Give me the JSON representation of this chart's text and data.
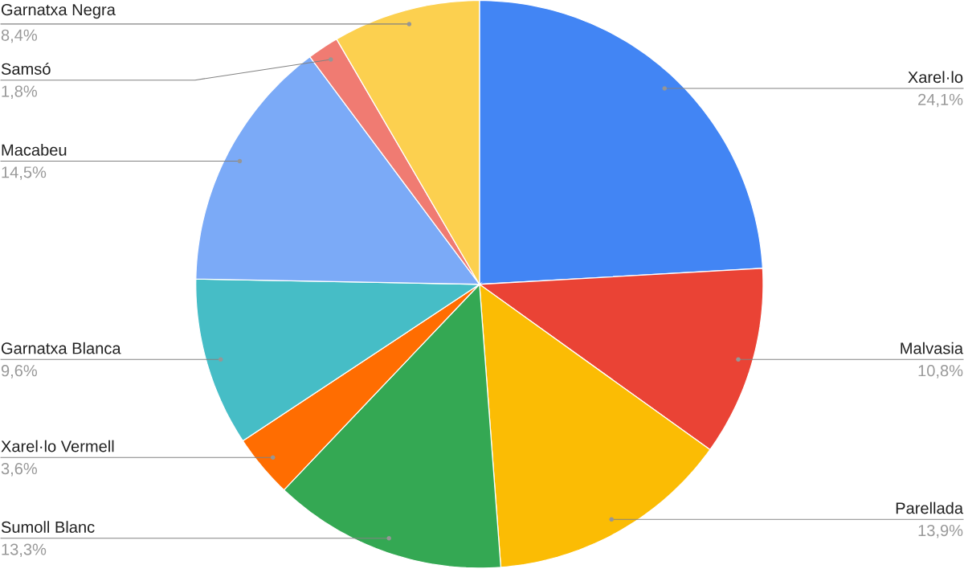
{
  "chart_data": {
    "type": "pie",
    "categories": [
      "Xarel·lo",
      "Malvasia",
      "Parellada",
      "Sumoll Blanc",
      "Xarel·lo Vermell",
      "Garnatxa Blanca",
      "Macabeu",
      "Samsó",
      "Garnatxa Negra"
    ],
    "values": [
      24.1,
      10.8,
      13.9,
      13.3,
      3.6,
      9.6,
      14.5,
      1.8,
      8.4
    ],
    "colors": [
      "#4285f4",
      "#ea4335",
      "#fbbc04",
      "#34a853",
      "#ff6d01",
      "#46bdc6",
      "#7baaf7",
      "#f07b72",
      "#fcd04f"
    ],
    "value_labels": [
      "24,1%",
      "10,8%",
      "13,9%",
      "13,3%",
      "3,6%",
      "9,6%",
      "14,5%",
      "1,8%",
      "8,4%"
    ]
  }
}
